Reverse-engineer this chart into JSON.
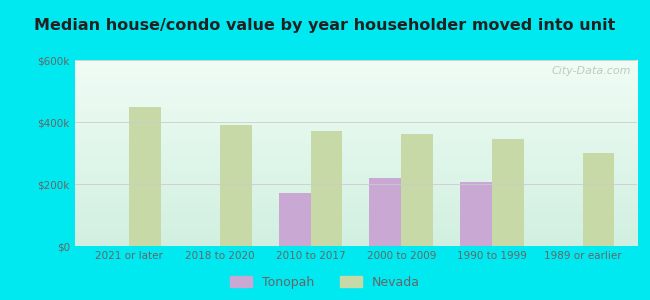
{
  "title": "Median house/condo value by year householder moved into unit",
  "categories": [
    "2021 or later",
    "2018 to 2020",
    "2010 to 2017",
    "2000 to 2009",
    "1990 to 1999",
    "1989 or earlier"
  ],
  "tonopah": [
    null,
    null,
    170000,
    220000,
    205000,
    null
  ],
  "nevada": [
    450000,
    390000,
    370000,
    360000,
    345000,
    300000
  ],
  "tonopah_color": "#c9a8d4",
  "nevada_color": "#c8d9a8",
  "background_outer": "#00e8f0",
  "background_inner_top": "#e8f8f0",
  "background_inner_bottom": "#d8f0e8",
  "ylim": [
    0,
    600000
  ],
  "yticks": [
    0,
    200000,
    400000,
    600000
  ],
  "ytick_labels": [
    "$0",
    "$200k",
    "$400k",
    "$600k"
  ],
  "bar_width": 0.35,
  "legend_tonopah": "Tonopah",
  "legend_nevada": "Nevada",
  "watermark": "City-Data.com",
  "title_color": "#222222",
  "tick_color": "#666666",
  "grid_color": "#cccccc"
}
